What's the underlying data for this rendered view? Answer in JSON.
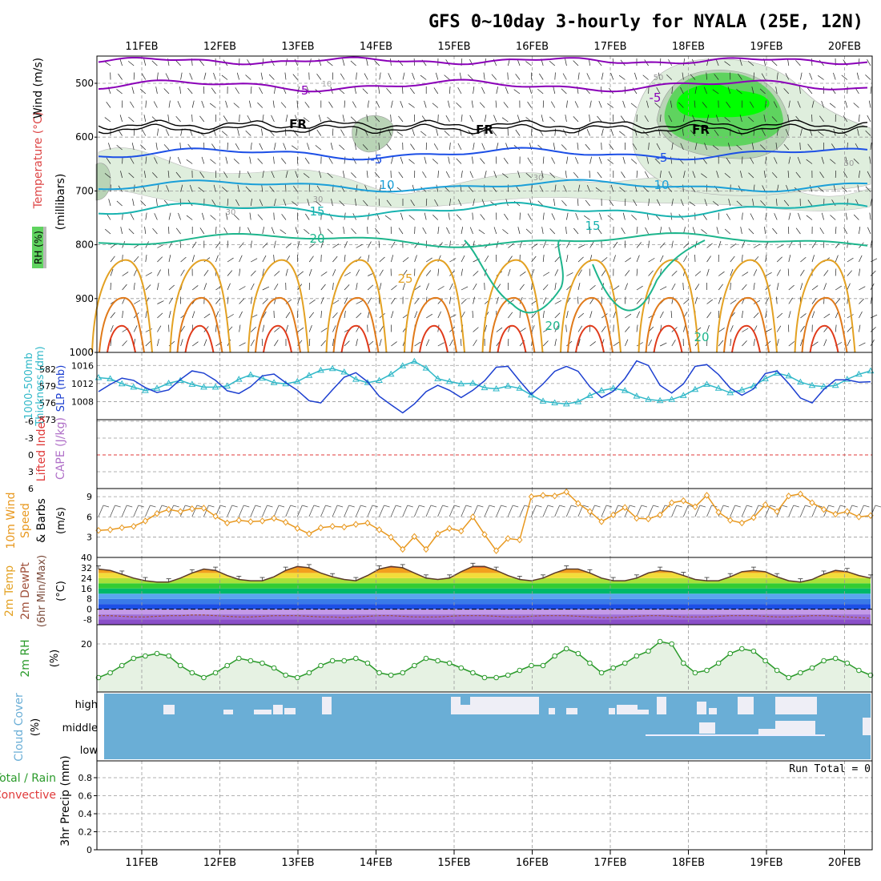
{
  "title": "GFS 0~10day 3-hourly for NYALA (25E, 12N)",
  "dates": [
    "11FEB",
    "12FEB",
    "13FEB",
    "14FEB",
    "15FEB",
    "16FEB",
    "17FEB",
    "18FEB",
    "19FEB",
    "20FEB"
  ],
  "colors": {
    "rh_green": "#5fd35f",
    "rh_bright": "#00ff00",
    "temp_purple": "#8a00b8",
    "temp_blue": "#1c4fe6",
    "temp_cyan": "#1a9fd8",
    "temp_teal": "#18b3b0",
    "temp_green": "#1db58c",
    "temp_orange": "#e3a122",
    "temp_red": "#e03a1a",
    "slp": "#1c3fd0",
    "thickness": "#30b8c8",
    "lifted": "#e03a3a",
    "wind10": "#e8981e",
    "rh2m": "#2a9a2a",
    "cloud": "#6aaed6"
  },
  "panels": {
    "upper": {
      "label_rh": "RH (%)",
      "label_temp": "Temperature (°C)",
      "label_wind": "Wind (m/s)",
      "label_axis": "(millibars)",
      "yticks": [
        "500",
        "600",
        "700",
        "800",
        "900",
        "1000"
      ],
      "contour_labels": [
        "-5",
        "-5",
        "FR",
        "FR",
        "FR",
        "-5",
        "-5",
        "10",
        "10",
        "15",
        "15",
        "20",
        "25",
        "20",
        "20",
        "30",
        "30",
        "30",
        "10",
        "50",
        "50"
      ]
    },
    "slp": {
      "label1": "1000-500mb",
      "label2": "Thickness (dm)",
      "label3": "SLP (mb)",
      "left_ticks": [
        "582",
        "579",
        "576",
        "573"
      ],
      "right_ticks": [
        "1016",
        "1012",
        "1008"
      ]
    },
    "cape": {
      "label1": "Lifted Index",
      "label2": "CAPE (J/kg)",
      "ticks": [
        "-6",
        "-3",
        "0",
        "3",
        "6"
      ]
    },
    "wind10": {
      "label1": "10m Wind",
      "label2": "Speed",
      "label3": "& Barbs",
      "unit": "(m/s)",
      "ticks": [
        "9",
        "6",
        "3"
      ]
    },
    "temp2m": {
      "label1": "2m Temp",
      "label2": "2m DewPt",
      "label3": "(6hr Min/Max)",
      "unit": "(°C)",
      "ticks": [
        "40",
        "32",
        "24",
        "16",
        "8",
        "0",
        "-8"
      ]
    },
    "rh2m": {
      "label1": "2m RH",
      "unit": "(%)",
      "ticks": [
        "20"
      ]
    },
    "cloud": {
      "label1": "Cloud Cover",
      "unit": "(%)",
      "levels": [
        "high",
        "middle",
        "low"
      ]
    },
    "precip": {
      "label1": "Total / Rain",
      "label2": "Convective",
      "label3": "3hr Precip (mm)",
      "ticks": [
        "0.8",
        "0.6",
        "0.4",
        "0.2",
        "0"
      ],
      "run_total": "Run Total = 0"
    }
  },
  "chart_data": [
    {
      "type": "line",
      "title": "1000-500mb Thickness (dm)",
      "series": [
        {
          "name": "1000-500mb Thickness",
          "values": [
            580.5,
            580.3,
            579.4,
            578.8,
            578.2,
            578.6,
            579.5,
            580.0,
            579.3,
            578.8,
            578.8,
            579.0,
            580.2,
            581.0,
            580.4,
            579.6,
            579.4,
            579.8,
            580.9,
            581.8,
            582.1,
            581.5,
            580.2,
            579.6,
            580.0,
            581.1,
            582.6,
            583.4,
            582.2,
            580.3,
            579.8,
            579.4,
            579.5,
            578.7,
            578.5,
            579.0,
            578.6,
            577.4,
            576.3,
            576.0,
            575.8,
            576.2,
            577.3,
            578.2,
            578.6,
            578.2,
            577.2,
            576.6,
            576.4,
            576.6,
            577.3,
            578.4,
            579.3,
            578.6,
            577.8,
            578.3,
            579.0,
            580.3,
            581.3,
            580.8,
            579.7,
            579.1,
            578.9,
            579.1,
            580.2,
            581.1,
            581.7
          ]
        }
      ],
      "ylim": [
        573,
        584
      ]
    },
    {
      "type": "line",
      "title": "SLP (mb)",
      "series": [
        {
          "name": "SLP",
          "values": [
            1010.2,
            1011.8,
            1013.2,
            1012.7,
            1011.1,
            1010.0,
            1010.6,
            1012.9,
            1014.8,
            1014.3,
            1012.7,
            1010.4,
            1009.8,
            1011.3,
            1013.7,
            1014.1,
            1012.2,
            1010.5,
            1008.2,
            1007.7,
            1010.6,
            1013.4,
            1014.4,
            1012.4,
            1009.2,
            1007.3,
            1005.5,
            1007.5,
            1010.2,
            1011.6,
            1010.5,
            1008.9,
            1010.5,
            1012.6,
            1015.6,
            1015.8,
            1012.6,
            1009.6,
            1011.9,
            1014.7,
            1015.8,
            1014.7,
            1011.3,
            1008.9,
            1010.3,
            1013.1,
            1017.0,
            1016.0,
            1011.6,
            1009.9,
            1011.9,
            1015.8,
            1016.2,
            1014.0,
            1011.0,
            1009.4,
            1010.8,
            1014.2,
            1014.8,
            1012.0,
            1008.8,
            1007.7,
            1010.7,
            1012.8,
            1012.8,
            1012.3,
            1012.4
          ]
        }
      ],
      "ylim": [
        1004,
        1018
      ]
    },
    {
      "type": "line",
      "title": "Lifted Index",
      "series": [
        {
          "name": "Lifted Index",
          "values": [
            0
          ]
        }
      ],
      "ylim": [
        6,
        -6
      ]
    },
    {
      "type": "line",
      "title": "10m Wind Speed (m/s)",
      "series": [
        {
          "name": "10m Wind Speed",
          "values": [
            4.0,
            4.1,
            4.4,
            4.6,
            5.4,
            6.5,
            7.1,
            6.8,
            7.2,
            7.3,
            6.1,
            5.1,
            5.5,
            5.3,
            5.4,
            5.8,
            5.2,
            4.3,
            3.5,
            4.4,
            4.6,
            4.5,
            4.9,
            5.1,
            4.1,
            3.0,
            1.2,
            3.1,
            1.2,
            3.5,
            4.3,
            3.9,
            6.0,
            3.4,
            1.0,
            2.8,
            2.6,
            9.0,
            9.2,
            9.1,
            9.7,
            8.0,
            6.8,
            5.3,
            6.3,
            7.4,
            5.8,
            5.7,
            6.3,
            8.1,
            8.4,
            7.5,
            9.2,
            6.7,
            5.5,
            5.1,
            5.9,
            7.8,
            6.8,
            9.1,
            9.4,
            8.1,
            7.1,
            6.4,
            6.8,
            6.0,
            6.2
          ]
        }
      ],
      "ylim": [
        0,
        10
      ]
    },
    {
      "type": "area",
      "title": "2m Temp (°C)",
      "series": [
        {
          "name": "2m Temp",
          "values": [
            31,
            30,
            27,
            24,
            22,
            21,
            21,
            24,
            28,
            31,
            30,
            26,
            23,
            22,
            22,
            25,
            30,
            33,
            32,
            28,
            25,
            23,
            22,
            26,
            31,
            33,
            32,
            28,
            24,
            23,
            24,
            29,
            33,
            33,
            30,
            26,
            23,
            22,
            24,
            28,
            31,
            31,
            28,
            24,
            22,
            22,
            24,
            28,
            30,
            29,
            26,
            23,
            22,
            22,
            25,
            29,
            30,
            29,
            25,
            22,
            21,
            23,
            27,
            30,
            29,
            26,
            24
          ]
        }
      ],
      "ylim": [
        -12,
        40
      ]
    },
    {
      "type": "line",
      "title": "2m DewPt (°C)",
      "series": [
        {
          "name": "2m DewPt",
          "values": [
            -5,
            -5,
            -5.5,
            -6,
            -6,
            -5.5,
            -5,
            -5,
            -4.5,
            -4.5,
            -5,
            -5.5,
            -6,
            -6,
            -5.5,
            -5,
            -5,
            -5,
            -5.5,
            -6,
            -6,
            -6.5,
            -6,
            -5.5,
            -5,
            -5,
            -5.5,
            -6,
            -6,
            -6,
            -5.5,
            -5,
            -5,
            -5,
            -5.5,
            -6,
            -6,
            -5.5,
            -5,
            -5,
            -5,
            -5.5,
            -6,
            -6.5,
            -6.5,
            -6,
            -5.5,
            -5,
            -5,
            -5.5,
            -6,
            -6,
            -6,
            -5.5,
            -5,
            -5,
            -5,
            -5.5,
            -6,
            -6,
            -5.5,
            -5,
            -5,
            -5.5,
            -6,
            -6.5,
            -7
          ]
        }
      ],
      "ylim": [
        -12,
        40
      ]
    },
    {
      "type": "line",
      "title": "2m RH (%)",
      "series": [
        {
          "name": "2m RH",
          "values": [
            6,
            8,
            11,
            14,
            15,
            16,
            15,
            11,
            8,
            6,
            8,
            11,
            14,
            13,
            12,
            10,
            7,
            6,
            8,
            11,
            13,
            13,
            14,
            12,
            8,
            7,
            8,
            11,
            14,
            13,
            12,
            10,
            8,
            6,
            6,
            7,
            9,
            11,
            11,
            15,
            18,
            16,
            12,
            8,
            10,
            12,
            15,
            17,
            21,
            20,
            12,
            8,
            9,
            12,
            16,
            18,
            17,
            13,
            9,
            6,
            8,
            10,
            13,
            14,
            12,
            9,
            7
          ]
        }
      ],
      "ylim": [
        0,
        28
      ]
    },
    {
      "type": "bar",
      "title": "3hr Precip (mm)",
      "series": [
        {
          "name": "Total / Rain",
          "values": [
            0
          ]
        },
        {
          "name": "Convective",
          "values": [
            0
          ]
        }
      ],
      "ylim": [
        0,
        1
      ]
    }
  ]
}
